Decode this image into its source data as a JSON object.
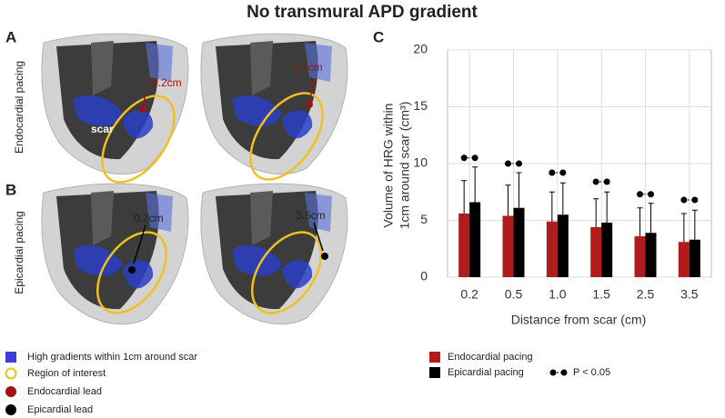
{
  "title": "No transmural APD gradient",
  "panel_a": {
    "label": "A",
    "row_label": "Endocardial pacing",
    "scar_label": "scar",
    "distances": [
      "0.2cm",
      "3.5cm"
    ]
  },
  "panel_b": {
    "label": "B",
    "row_label": "Epicardial pacing",
    "distances": [
      "0.2cm",
      "3.5cm"
    ]
  },
  "image_legend": [
    "High gradients within 1cm around scar",
    "Region of interest",
    "Endocardial lead",
    "Epicardial lead"
  ],
  "chart_data": {
    "type": "bar",
    "panel_label": "C",
    "x_label": "Distance from scar (cm)",
    "y_label": [
      "Volume of HRG within",
      "1cm around scar (cm³)"
    ],
    "categories": [
      "0.2",
      "0.5",
      "1.0",
      "1.5",
      "2.5",
      "3.5"
    ],
    "series": [
      {
        "name": "Endocardial pacing",
        "color": "#b01c1c",
        "values": [
          5.6,
          5.4,
          4.9,
          4.4,
          3.6,
          3.1
        ],
        "errors": [
          2.9,
          2.7,
          2.6,
          2.5,
          2.5,
          2.5
        ]
      },
      {
        "name": "Epicardial pacing",
        "color": "#000000",
        "values": [
          6.6,
          6.1,
          5.5,
          4.8,
          3.9,
          3.3
        ],
        "errors": [
          3.1,
          3.1,
          2.8,
          2.7,
          2.6,
          2.6
        ]
      }
    ],
    "significance": [
      10.5,
      10.0,
      9.2,
      8.4,
      7.3,
      6.8
    ],
    "significance_label": "P < 0.05",
    "ylim": [
      0,
      20
    ],
    "yticks": [
      0,
      5,
      10,
      15,
      20
    ],
    "grid": true
  }
}
